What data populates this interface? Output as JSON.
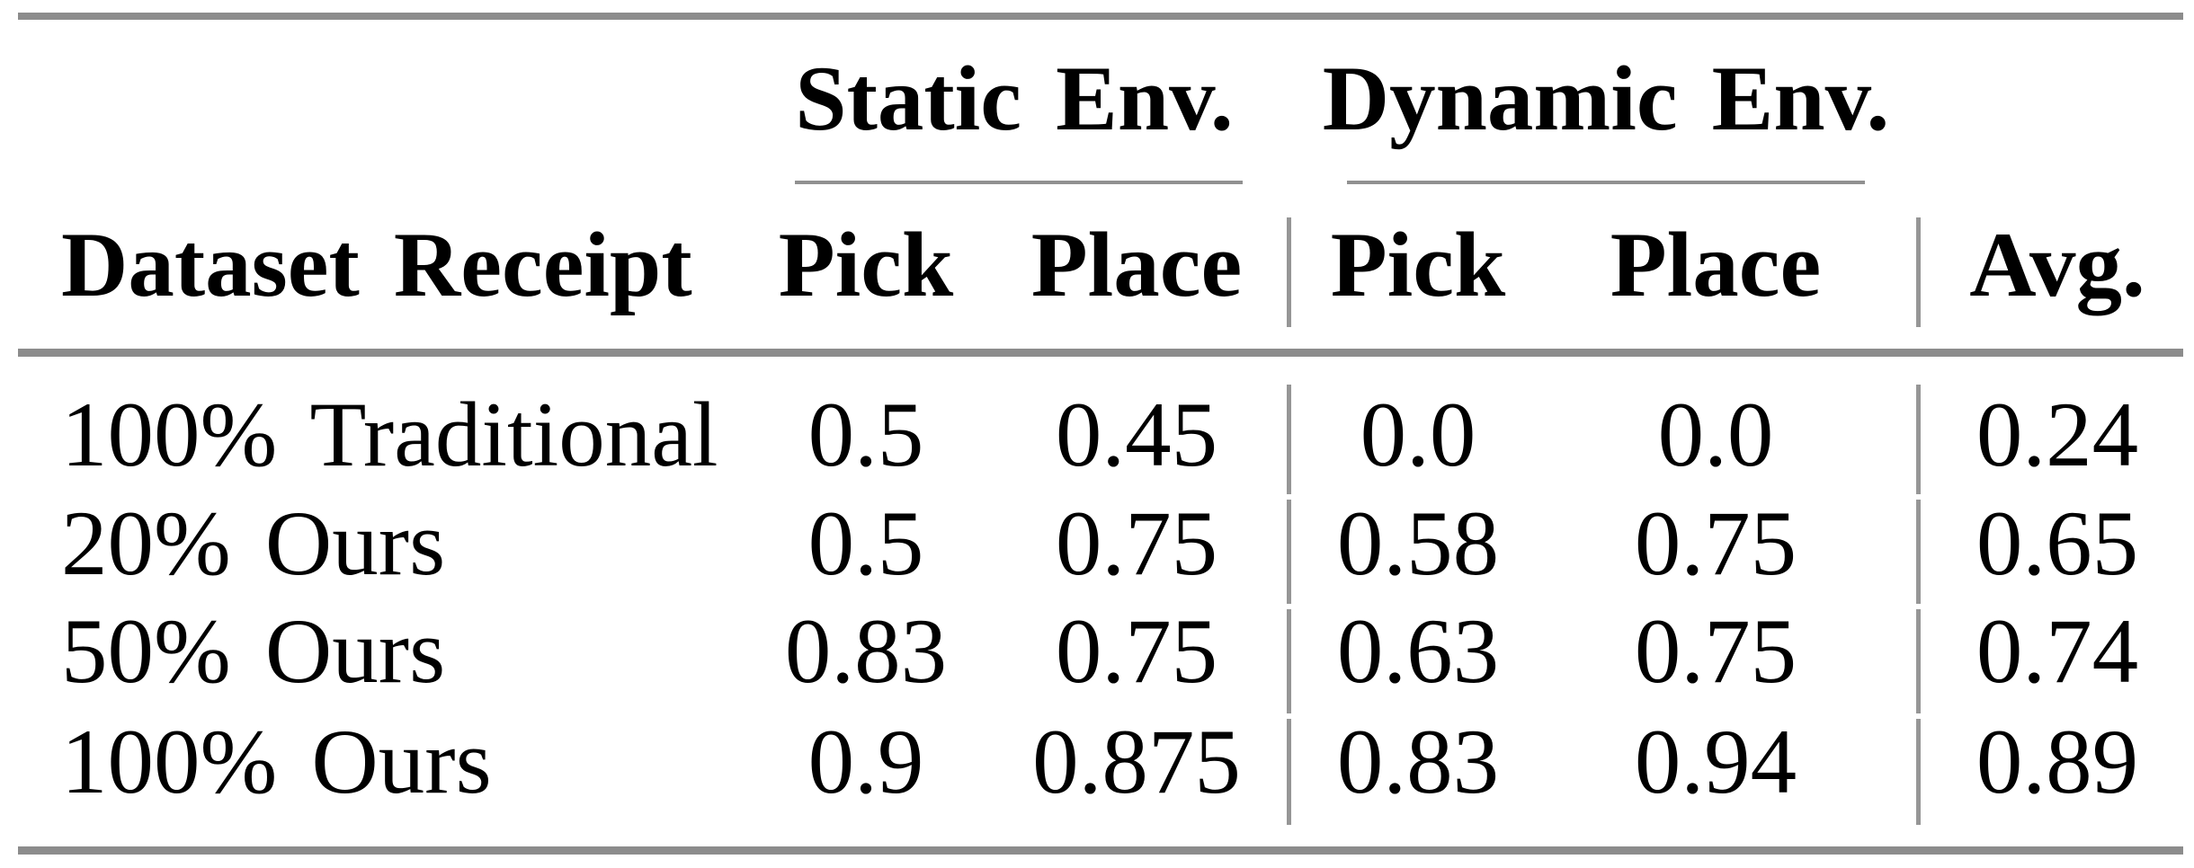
{
  "chart_data": {
    "type": "table",
    "column_groups": [
      {
        "label": "Static Env.",
        "columns": [
          "Pick",
          "Place"
        ]
      },
      {
        "label": "Dynamic Env.",
        "columns": [
          "Pick",
          "Place"
        ]
      }
    ],
    "row_header_label": "Dataset Receipt",
    "avg_label": "Avg.",
    "rows": [
      {
        "label": "100% Traditional",
        "values": [
          "0.5",
          "0.45",
          "0.0",
          "0.0",
          "0.24"
        ]
      },
      {
        "label": "20% Ours",
        "values": [
          "0.5",
          "0.75",
          "0.58",
          "0.75",
          "0.65"
        ]
      },
      {
        "label": "50% Ours",
        "values": [
          "0.83",
          "0.75",
          "0.63",
          "0.75",
          "0.74"
        ]
      },
      {
        "label": "100% Ours",
        "values": [
          "0.9",
          "0.875",
          "0.83",
          "0.94",
          "0.89"
        ]
      }
    ],
    "colors": {
      "thick_rule": "#8c8c8c",
      "thin_rule": "#919191",
      "vertical_rule": "#969696",
      "text": "#000000",
      "background": "#ffffff"
    }
  }
}
